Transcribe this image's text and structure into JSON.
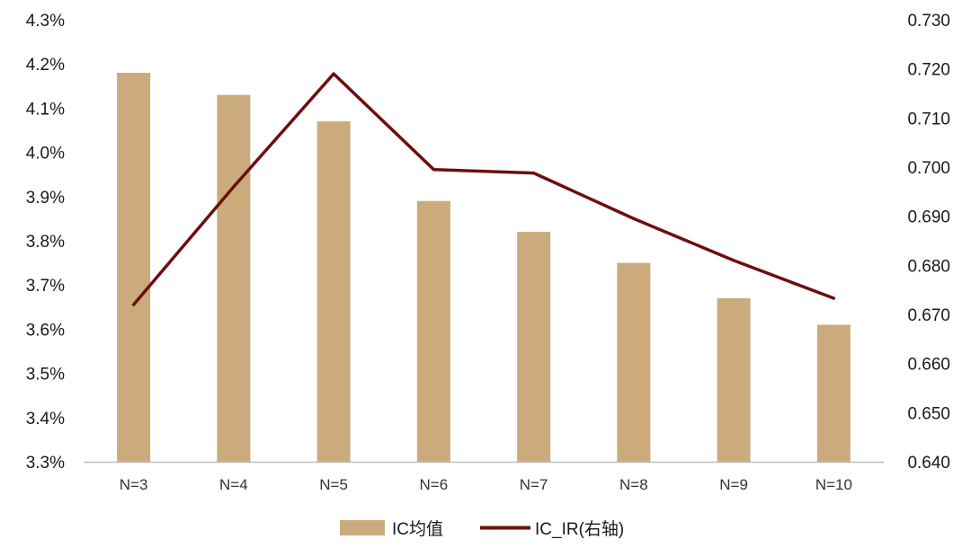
{
  "chart_data": {
    "type": "bar",
    "categories": [
      "N=3",
      "N=4",
      "N=5",
      "N=6",
      "N=7",
      "N=8",
      "N=9",
      "N=10"
    ],
    "series": [
      {
        "name": "IC均值",
        "type": "bar",
        "axis": "left",
        "values": [
          0.0418,
          0.0413,
          0.0407,
          0.0389,
          0.0382,
          0.0375,
          0.0367,
          0.0361
        ]
      },
      {
        "name": "IC_IR(右轴)",
        "type": "line",
        "axis": "right",
        "values": [
          0.672,
          0.696,
          0.719,
          0.6995,
          0.6988,
          0.6895,
          0.681,
          0.6733
        ]
      }
    ],
    "y_left": {
      "lim": [
        0.033,
        0.043
      ],
      "ticks": [
        0.033,
        0.034,
        0.035,
        0.036,
        0.037,
        0.038,
        0.039,
        0.04,
        0.041,
        0.042,
        0.043
      ],
      "tick_labels": [
        "3.3%",
        "3.4%",
        "3.5%",
        "3.6%",
        "3.7%",
        "3.8%",
        "3.9%",
        "4.0%",
        "4.1%",
        "4.2%",
        "4.3%"
      ]
    },
    "y_right": {
      "lim": [
        0.64,
        0.73
      ],
      "ticks": [
        0.64,
        0.65,
        0.66,
        0.67,
        0.68,
        0.69,
        0.7,
        0.71,
        0.72,
        0.73
      ],
      "tick_labels": [
        "0.640",
        "0.650",
        "0.660",
        "0.670",
        "0.680",
        "0.690",
        "0.700",
        "0.710",
        "0.720",
        "0.730"
      ]
    },
    "grid": false,
    "legend": "bottom-center",
    "colors": {
      "bar": "#cbab7b",
      "line": "#6e0e0e",
      "axis": "#bfbfbf"
    }
  }
}
